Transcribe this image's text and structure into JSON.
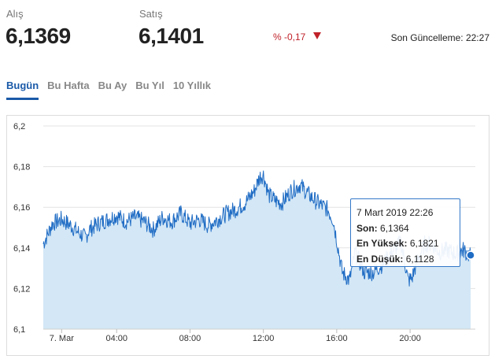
{
  "quote": {
    "buy_label": "Alış",
    "buy_value": "6,1369",
    "sell_label": "Satış",
    "sell_value": "6,1401",
    "change": "% -0,17",
    "last_update": "Son Güncelleme: 22:27"
  },
  "tabs": [
    {
      "label": "Bugün",
      "active": true
    },
    {
      "label": "Bu Hafta",
      "active": false
    },
    {
      "label": "Bu Ay",
      "active": false
    },
    {
      "label": "Bu Yıl",
      "active": false
    },
    {
      "label": "10 Yıllık",
      "active": false
    }
  ],
  "tooltip": {
    "date": "7 Mart 2019 22:26",
    "last_label": "Son:",
    "last_value": "6,1364",
    "high_label": "En Yüksek:",
    "high_value": "6,1821",
    "low_label": "En Düşük:",
    "low_value": "6,1128"
  },
  "colors": {
    "line": "#1f6cc4",
    "fill": "#d3e7f6",
    "accent": "#1a5aa8",
    "negative": "#c0222a"
  },
  "chart_data": {
    "type": "area",
    "ylim": [
      6.1,
      6.2
    ],
    "xlim": [
      0.0,
      23.3
    ],
    "grid": true,
    "y_ticks": [
      6.1,
      6.12,
      6.14,
      6.16,
      6.18,
      6.2
    ],
    "y_tick_labels": [
      "6,1",
      "6,12",
      "6,14",
      "6,16",
      "6,18",
      "6,2"
    ],
    "x_ticks": [
      1.0,
      4.0,
      8.0,
      12.0,
      16.0,
      20.0
    ],
    "x_tick_labels": [
      "7. Mar",
      "04:00",
      "08:00",
      "12:00",
      "16:00",
      "20:00"
    ],
    "series": [
      {
        "x": [
          0.0,
          0.2,
          0.5,
          1.0,
          1.5,
          2.0,
          2.3,
          2.5,
          3.0,
          3.5,
          4.0,
          4.5,
          5.0,
          5.5,
          6.0,
          6.5,
          7.0,
          7.5,
          8.0,
          8.5,
          9.0,
          9.5,
          10.0,
          10.5,
          11.0,
          11.5,
          11.8,
          12.0,
          12.3,
          12.7,
          13.0,
          13.5,
          14.0,
          14.5,
          15.0,
          15.5,
          15.8,
          16.0,
          16.3,
          16.7,
          17.0,
          17.5,
          18.0,
          18.5,
          19.0,
          19.5,
          19.9,
          20.1,
          20.4,
          20.8,
          21.2,
          21.6,
          22.0,
          22.5,
          22.9,
          23.3
        ],
        "y": [
          6.142,
          6.146,
          6.152,
          6.154,
          6.151,
          6.147,
          6.145,
          6.149,
          6.152,
          6.154,
          6.156,
          6.153,
          6.155,
          6.153,
          6.149,
          6.155,
          6.153,
          6.157,
          6.152,
          6.154,
          6.151,
          6.154,
          6.157,
          6.159,
          6.162,
          6.168,
          6.175,
          6.176,
          6.166,
          6.163,
          6.162,
          6.168,
          6.171,
          6.166,
          6.162,
          6.159,
          6.154,
          6.144,
          6.128,
          6.124,
          6.138,
          6.128,
          6.128,
          6.132,
          6.138,
          6.143,
          6.124,
          6.125,
          6.134,
          6.142,
          6.142,
          6.138,
          6.139,
          6.137,
          6.139,
          6.136
        ]
      }
    ],
    "highlight": {
      "x": 23.3,
      "y": 6.1364
    }
  }
}
